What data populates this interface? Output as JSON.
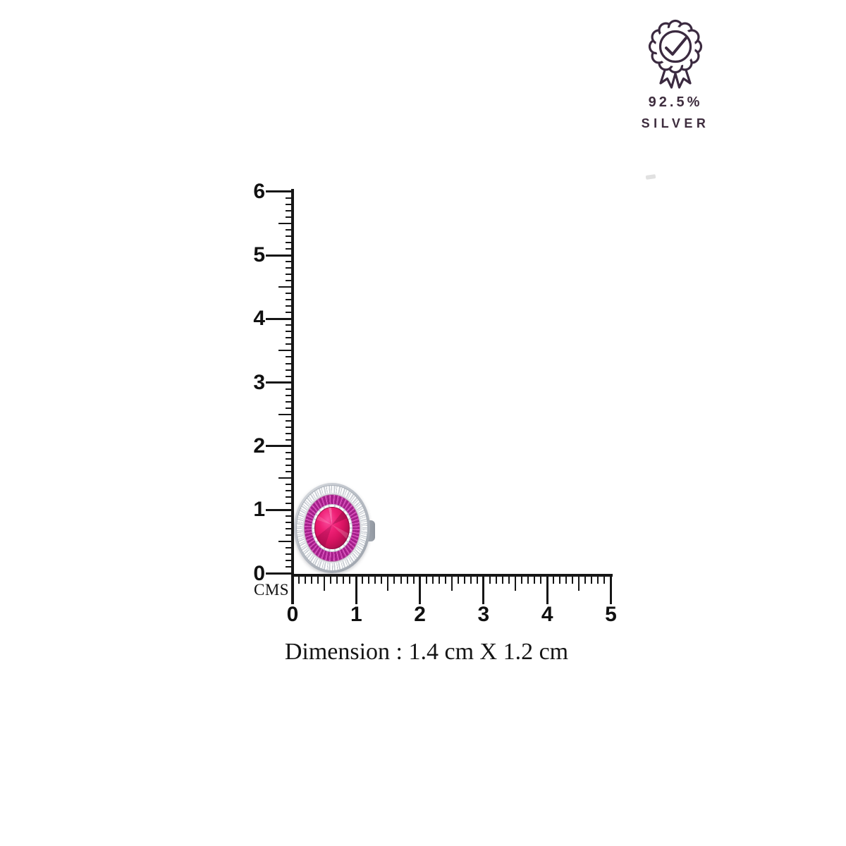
{
  "certification_badge": {
    "icon": "award-rosette-check-icon",
    "purity": "92.5%",
    "material": "SILVER",
    "color": "#3e2d3e"
  },
  "ruler": {
    "unit_label": "CMS",
    "vertical_labels": [
      "0",
      "1",
      "2",
      "3",
      "4",
      "5",
      "6"
    ],
    "horizontal_labels": [
      "0",
      "1",
      "2",
      "3",
      "4",
      "5"
    ],
    "color": "#161616"
  },
  "product": {
    "description": "oval ruby stud with pink baguette halo and diamond pave border",
    "colors": {
      "center_stone": "#d61260",
      "baguette_ring": "#cb3cae",
      "diamond_halo": "#f6f7f8",
      "metal": "#b9bec6"
    }
  },
  "dimension_caption": "Dimension : 1.4 cm X 1.2 cm"
}
